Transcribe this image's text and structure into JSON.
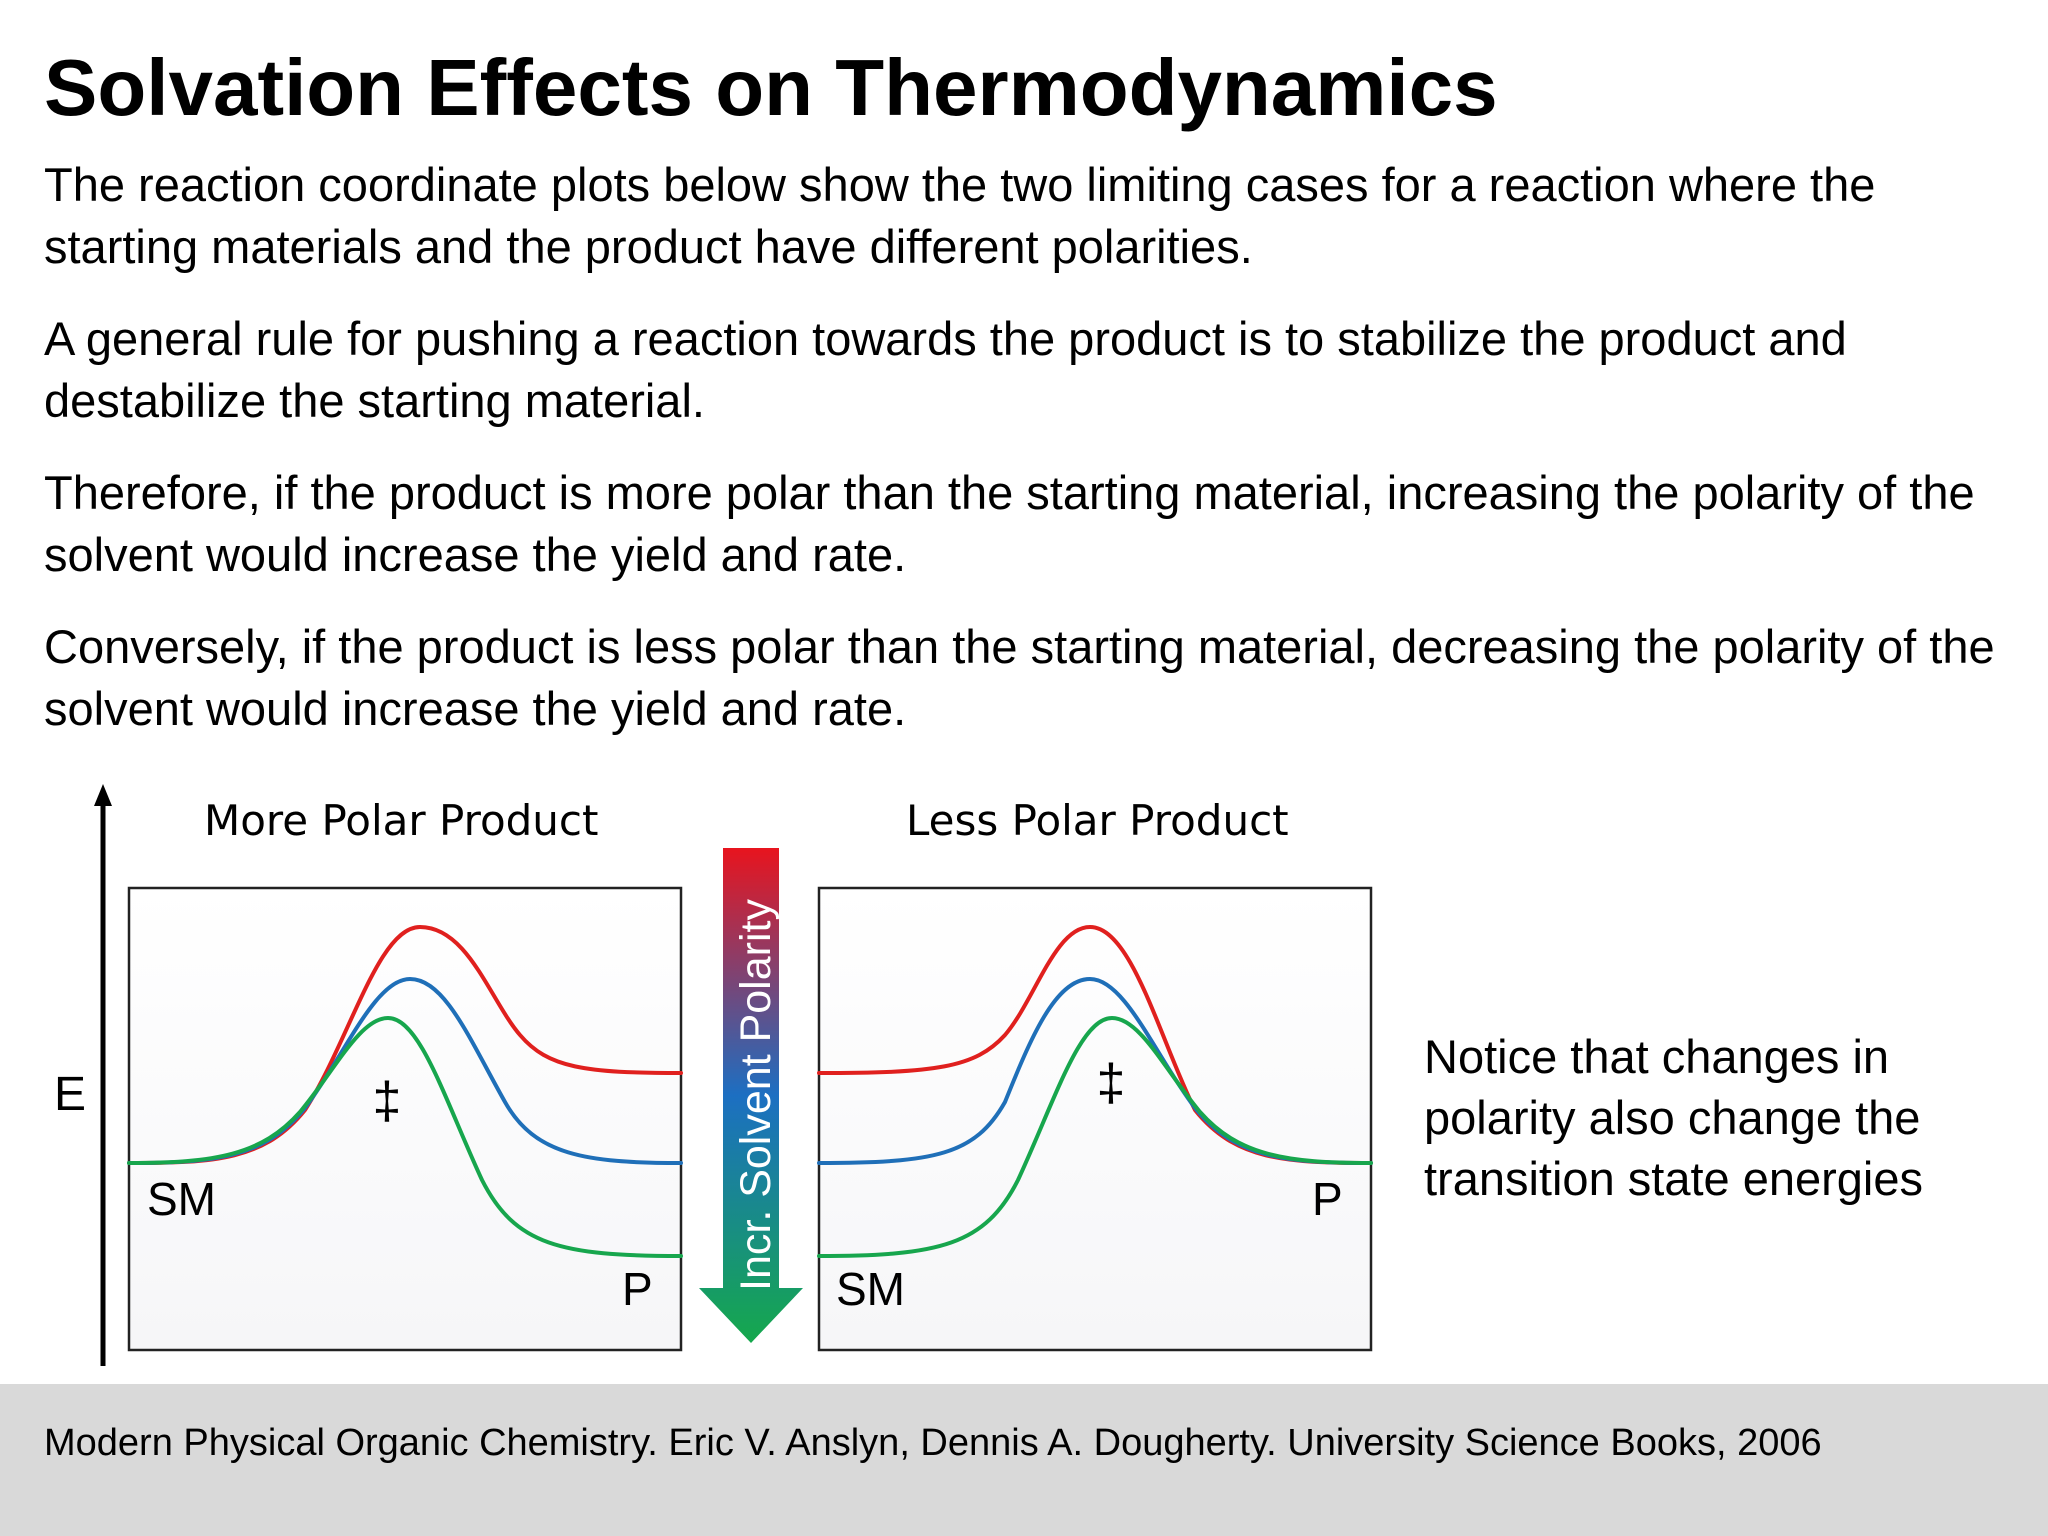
{
  "slide": {
    "title": "Solvation Effects on Thermodynamics",
    "paragraphs": [
      "The reaction coordinate plots below show the two limiting cases for a reaction where the starting materials and the product have different polarities.",
      "A general rule for pushing a reaction towards the product is to stabilize the product and destabilize the starting material.",
      "Therefore, if the product is more polar than the starting material, increasing the polarity of the solvent would increase the yield and rate.",
      "Conversely, if the product is less polar than the starting material, decreasing the polarity of the solvent would increase the yield and rate."
    ],
    "note": "Notice that changes in polarity also change the transition state energies",
    "citation": "Modern Physical Organic Chemistry. Eric V. Anslyn, Dennis A. Dougherty. University Science Books, 2006"
  },
  "diagram": {
    "energy_axis_label": "E",
    "arrow_label": "Incr. Solvent Polarity",
    "ts_symbol": "‡",
    "arrow_colors": [
      "#e8141e",
      "#1c6fc2",
      "#15a84c"
    ],
    "curve_colors": {
      "red": "#e0201e",
      "blue": "#1f6fb8",
      "green": "#17a64d"
    },
    "plots": [
      {
        "title": "More Polar Product",
        "sm_label": "SM",
        "p_label": "P"
      },
      {
        "title": "Less Polar Product",
        "sm_label": "SM",
        "p_label": "P"
      }
    ]
  }
}
